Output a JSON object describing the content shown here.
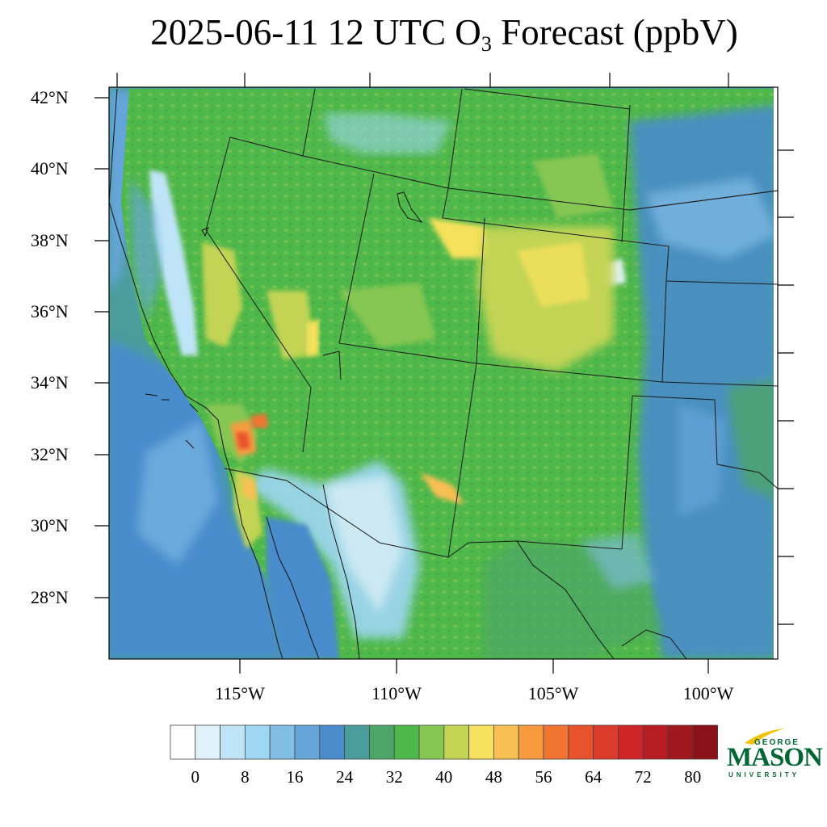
{
  "title": {
    "text": "2025-06-11 12 UTC O",
    "sub": "3",
    "suffix": " Forecast (ppbV)"
  },
  "lat_labels": [
    "42°N",
    "40°N",
    "38°N",
    "36°N",
    "34°N",
    "32°N",
    "30°N",
    "28°N"
  ],
  "lon_labels": [
    "115°W",
    "110°W",
    "105°W",
    "100°W"
  ],
  "colorbar": {
    "colors": [
      "#ffffff",
      "#e2f2fb",
      "#bfe4f7",
      "#9fd7f3",
      "#82bde6",
      "#66a5da",
      "#4a8ccc",
      "#4a9d9b",
      "#4da667",
      "#4fb84a",
      "#86c652",
      "#c3d454",
      "#f6e15c",
      "#f8bf52",
      "#f79a3f",
      "#f17433",
      "#e6532c",
      "#dc3a2a",
      "#cf2428",
      "#b71c22",
      "#a0181d",
      "#8b1218"
    ],
    "tick_labels": [
      "0",
      "8",
      "16",
      "24",
      "32",
      "40",
      "48",
      "56",
      "64",
      "72",
      "80"
    ]
  },
  "logo": {
    "line1": "GEORGE",
    "line2": "MASON",
    "line3": "UNIVERSITY"
  }
}
